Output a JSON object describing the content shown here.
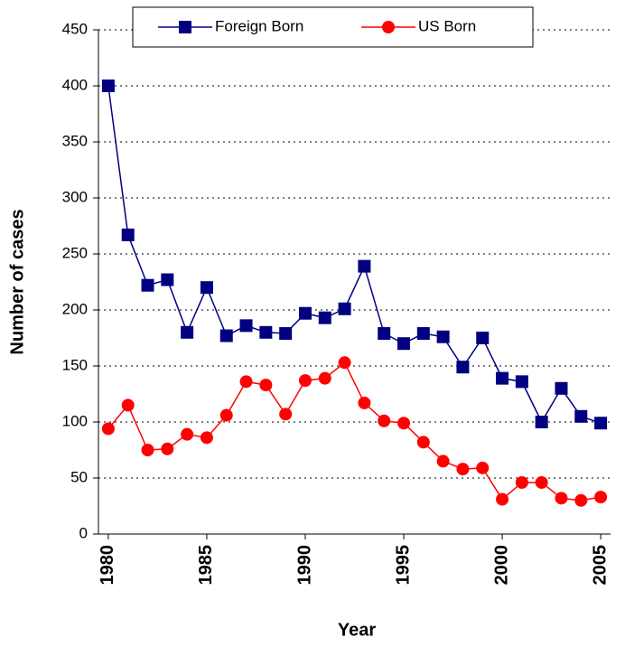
{
  "chart_data": {
    "type": "line",
    "x": [
      1980,
      1981,
      1982,
      1983,
      1984,
      1985,
      1986,
      1987,
      1988,
      1989,
      1990,
      1991,
      1992,
      1993,
      1994,
      1995,
      1996,
      1997,
      1998,
      1999,
      2000,
      2001,
      2002,
      2003,
      2004,
      2005
    ],
    "series": [
      {
        "name": "Foreign Born",
        "color": "#000080",
        "marker": "square",
        "values": [
          400,
          267,
          222,
          227,
          180,
          220,
          177,
          186,
          180,
          179,
          197,
          193,
          201,
          239,
          179,
          170,
          179,
          176,
          149,
          175,
          139,
          136,
          100,
          130,
          105,
          99
        ]
      },
      {
        "name": "US Born",
        "color": "#ff0000",
        "marker": "circle",
        "values": [
          94,
          115,
          75,
          76,
          89,
          86,
          106,
          136,
          133,
          107,
          137,
          139,
          153,
          117,
          101,
          99,
          82,
          65,
          58,
          59,
          31,
          46,
          46,
          32,
          30,
          33
        ]
      }
    ],
    "xlabel": "Year",
    "ylabel": "Number of cases",
    "xlim": [
      1979.5,
      2005.5
    ],
    "xticks": [
      1980,
      1985,
      1990,
      1995,
      2000,
      2005
    ],
    "ylim": [
      0,
      450
    ],
    "yticks": [
      0,
      50,
      100,
      150,
      200,
      250,
      300,
      350,
      400,
      450
    ],
    "grid": true,
    "legend": "top"
  }
}
